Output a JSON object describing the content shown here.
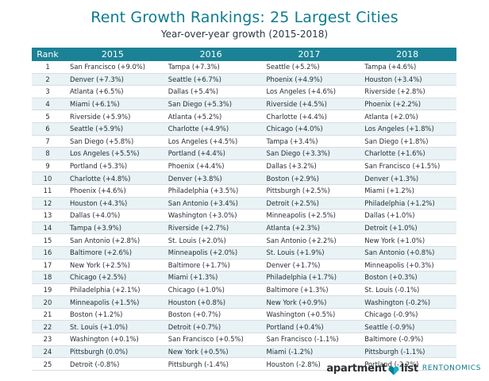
{
  "title": "Rent Growth Rankings: 25 Largest Cities",
  "subtitle": "Year-over-year growth (2015-2018)",
  "columns": [
    "Rank",
    "2015",
    "2016",
    "2017",
    "2018"
  ],
  "rows": [
    [
      "1",
      "San Francisco (+9.0%)",
      "Tampa (+7.3%)",
      "Seattle (+5.2%)",
      "Tampa (+4.6%)"
    ],
    [
      "2",
      "Denver (+7.3%)",
      "Seattle (+6.7%)",
      "Phoenix (+4.9%)",
      "Houston (+3.4%)"
    ],
    [
      "3",
      "Atlanta (+6.5%)",
      "Dallas (+5.4%)",
      "Los Angeles (+4.6%)",
      "Riverside (+2.8%)"
    ],
    [
      "4",
      "Miami (+6.1%)",
      "San Diego (+5.3%)",
      "Riverside (+4.5%)",
      "Phoenix (+2.2%)"
    ],
    [
      "5",
      "Riverside (+5.9%)",
      "Atlanta (+5.2%)",
      "Charlotte (+4.4%)",
      "Atlanta (+2.0%)"
    ],
    [
      "6",
      "Seattle (+5.9%)",
      "Charlotte (+4.9%)",
      "Chicago (+4.0%)",
      "Los Angeles (+1.8%)"
    ],
    [
      "7",
      "San Diego (+5.8%)",
      "Los Angeles (+4.5%)",
      "Tampa (+3.4%)",
      "San Diego (+1.8%)"
    ],
    [
      "8",
      "Los Angeles (+5.5%)",
      "Portland (+4.4%)",
      "San Diego (+3.3%)",
      "Charlotte (+1.6%)"
    ],
    [
      "9",
      "Portland (+5.3%)",
      "Phoenix (+4.4%)",
      "Dallas (+3.2%)",
      "San Francisco (+1.5%)"
    ],
    [
      "10",
      "Charlotte (+4.8%)",
      "Denver (+3.8%)",
      "Boston (+2.9%)",
      "Denver (+1.3%)"
    ],
    [
      "11",
      "Phoenix (+4.6%)",
      "Philadelphia (+3.5%)",
      "Pittsburgh (+2.5%)",
      "Miami (+1.2%)"
    ],
    [
      "12",
      "Houston (+4.3%)",
      "San Antonio (+3.4%)",
      "Detroit (+2.5%)",
      "Philadelphia (+1.2%)"
    ],
    [
      "13",
      "Dallas (+4.0%)",
      "Washington (+3.0%)",
      "Minneapolis (+2.5%)",
      "Dallas (+1.0%)"
    ],
    [
      "14",
      "Tampa (+3.9%)",
      "Riverside (+2.7%)",
      "Atlanta (+2.3%)",
      "Detroit (+1.0%)"
    ],
    [
      "15",
      "San Antonio (+2.8%)",
      "St. Louis (+2.0%)",
      "San Antonio (+2.2%)",
      "New York (+1.0%)"
    ],
    [
      "16",
      "Baltimore (+2.6%)",
      "Minneapolis (+2.0%)",
      "St. Louis (+1.9%)",
      "San Antonio (+0.8%)"
    ],
    [
      "17",
      "New York (+2.5%)",
      "Baltimore (+1.7%)",
      "Denver (+1.7%)",
      "Minneapolis (+0.3%)"
    ],
    [
      "18",
      "Chicago (+2.5%)",
      "Miami (+1.3%)",
      "Philadelphia (+1.7%)",
      "Boston (+0.3%)"
    ],
    [
      "19",
      "Philadelphia (+2.1%)",
      "Chicago (+1.0%)",
      "Baltimore (+1.3%)",
      "St. Louis (-0.1%)"
    ],
    [
      "20",
      "Minneapolis (+1.5%)",
      "Houston (+0.8%)",
      "New York (+0.9%)",
      "Washington (-0.2%)"
    ],
    [
      "21",
      "Boston (+1.2%)",
      "Boston (+0.7%)",
      "Washington (+0.5%)",
      "Chicago (-0.9%)"
    ],
    [
      "22",
      "St. Louis (+1.0%)",
      "Detroit (+0.7%)",
      "Portland (+0.4%)",
      "Seattle (-0.9%)"
    ],
    [
      "23",
      "Washington (+0.1%)",
      "San Francisco (+0.5%)",
      "San Francisco (-1.1%)",
      "Baltimore (-0.9%)"
    ],
    [
      "24",
      "Pittsburgh (0.0%)",
      "New York (+0.5%)",
      "Miami (-1.2%)",
      "Pittsburgh (-1.1%)"
    ],
    [
      "25",
      "Detroit (-0.8%)",
      "Pittsburgh (-1.4%)",
      "Houston (-2.8%)",
      "Portland (-2.2%)"
    ]
  ],
  "logo": {
    "part1": "apartment",
    "part2": "list",
    "suite": "RENTONOMICS",
    "icon": "heart-pin-icon"
  },
  "colors": {
    "accent": "#0e7c8e",
    "header_bg": "#1b8295",
    "stripe": "#e9f2f5"
  }
}
